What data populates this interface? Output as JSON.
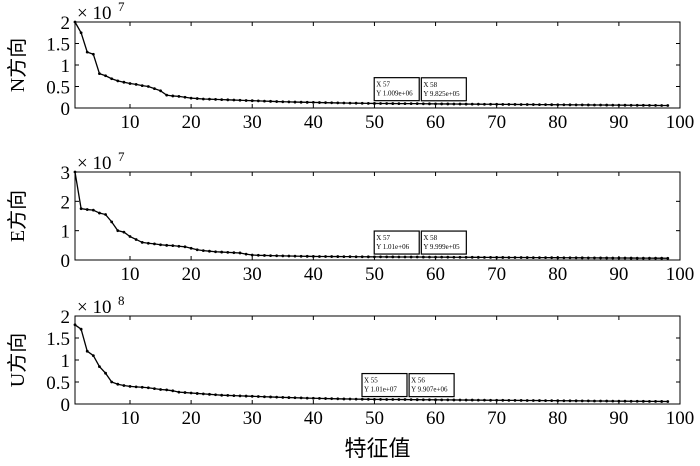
{
  "chart_data": [
    {
      "type": "line",
      "ylabel": "N方向",
      "scale_base": "× 10",
      "scale_exponent": "7",
      "x": [
        1,
        2,
        3,
        4,
        5,
        6,
        7,
        8,
        9,
        10,
        11,
        12,
        13,
        14,
        15,
        16,
        17,
        18,
        19,
        20,
        21,
        22,
        23,
        24,
        25,
        26,
        27,
        28,
        29,
        30,
        31,
        32,
        33,
        34,
        35,
        36,
        37,
        38,
        39,
        40,
        41,
        42,
        43,
        44,
        45,
        46,
        47,
        48,
        49,
        50,
        51,
        52,
        53,
        54,
        55,
        56,
        57,
        58,
        59,
        60,
        61,
        62,
        63,
        64,
        65,
        66,
        67,
        68,
        69,
        70,
        71,
        72,
        73,
        74,
        75,
        76,
        77,
        78,
        79,
        80,
        81,
        82,
        83,
        84,
        85,
        86,
        87,
        88,
        89,
        90,
        91,
        92,
        93,
        94,
        95,
        96,
        97,
        98
      ],
      "xlim": [
        1,
        100
      ],
      "xticks": [
        10,
        20,
        30,
        40,
        50,
        60,
        70,
        80,
        90,
        100
      ],
      "ylim": [
        0,
        2
      ],
      "yticks": [
        0,
        0.5,
        1,
        1.5,
        2
      ],
      "series": [
        {
          "color": "#000000",
          "values": [
            2.0,
            1.75,
            1.3,
            1.25,
            0.8,
            0.75,
            0.68,
            0.63,
            0.6,
            0.57,
            0.55,
            0.52,
            0.5,
            0.45,
            0.4,
            0.3,
            0.28,
            0.27,
            0.25,
            0.23,
            0.22,
            0.21,
            0.205,
            0.2,
            0.195,
            0.19,
            0.185,
            0.18,
            0.175,
            0.17,
            0.165,
            0.16,
            0.155,
            0.15,
            0.146,
            0.142,
            0.138,
            0.135,
            0.132,
            0.13,
            0.127,
            0.124,
            0.121,
            0.118,
            0.116,
            0.114,
            0.112,
            0.11,
            0.108,
            0.106,
            0.105,
            0.104,
            0.103,
            0.102,
            0.1015,
            0.101,
            0.1009,
            0.09825,
            0.097,
            0.096,
            0.095,
            0.094,
            0.093,
            0.092,
            0.091,
            0.09,
            0.089,
            0.088,
            0.087,
            0.086,
            0.085,
            0.084,
            0.083,
            0.082,
            0.081,
            0.08,
            0.079,
            0.078,
            0.077,
            0.076,
            0.075,
            0.074,
            0.073,
            0.072,
            0.071,
            0.07,
            0.069,
            0.068,
            0.067,
            0.066,
            0.065,
            0.064,
            0.063,
            0.062,
            0.061,
            0.06,
            0.059,
            0.058
          ]
        }
      ],
      "annotations": [
        {
          "x": 57,
          "x_label": "X 57",
          "y_label": "Y 1.009e+06"
        },
        {
          "x": 58,
          "x_label": "X 58",
          "y_label": "Y 9.825e+05"
        }
      ]
    },
    {
      "type": "line",
      "ylabel": "E方向",
      "scale_base": "× 10",
      "scale_exponent": "7",
      "x": [
        1,
        2,
        3,
        4,
        5,
        6,
        7,
        8,
        9,
        10,
        11,
        12,
        13,
        14,
        15,
        16,
        17,
        18,
        19,
        20,
        21,
        22,
        23,
        24,
        25,
        26,
        27,
        28,
        29,
        30,
        31,
        32,
        33,
        34,
        35,
        36,
        37,
        38,
        39,
        40,
        41,
        42,
        43,
        44,
        45,
        46,
        47,
        48,
        49,
        50,
        51,
        52,
        53,
        54,
        55,
        56,
        57,
        58,
        59,
        60,
        61,
        62,
        63,
        64,
        65,
        66,
        67,
        68,
        69,
        70,
        71,
        72,
        73,
        74,
        75,
        76,
        77,
        78,
        79,
        80,
        81,
        82,
        83,
        84,
        85,
        86,
        87,
        88,
        89,
        90,
        91,
        92,
        93,
        94,
        95,
        96,
        97,
        98
      ],
      "xlim": [
        1,
        100
      ],
      "xticks": [
        10,
        20,
        30,
        40,
        50,
        60,
        70,
        80,
        90,
        100
      ],
      "ylim": [
        0,
        3
      ],
      "yticks": [
        0,
        1,
        2,
        3
      ],
      "series": [
        {
          "color": "#000000",
          "values": [
            3.0,
            1.75,
            1.72,
            1.7,
            1.6,
            1.55,
            1.3,
            1.0,
            0.95,
            0.8,
            0.7,
            0.6,
            0.57,
            0.55,
            0.52,
            0.5,
            0.49,
            0.47,
            0.45,
            0.4,
            0.35,
            0.32,
            0.3,
            0.28,
            0.27,
            0.26,
            0.25,
            0.24,
            0.2,
            0.17,
            0.16,
            0.155,
            0.15,
            0.145,
            0.14,
            0.136,
            0.132,
            0.128,
            0.125,
            0.122,
            0.12,
            0.119,
            0.118,
            0.117,
            0.116,
            0.114,
            0.112,
            0.11,
            0.108,
            0.107,
            0.106,
            0.105,
            0.104,
            0.103,
            0.102,
            0.1015,
            0.101,
            0.09999,
            0.099,
            0.098,
            0.097,
            0.096,
            0.095,
            0.094,
            0.093,
            0.092,
            0.091,
            0.09,
            0.089,
            0.088,
            0.087,
            0.086,
            0.085,
            0.084,
            0.083,
            0.082,
            0.081,
            0.08,
            0.079,
            0.078,
            0.077,
            0.076,
            0.075,
            0.074,
            0.073,
            0.072,
            0.071,
            0.07,
            0.069,
            0.068,
            0.067,
            0.066,
            0.065,
            0.064,
            0.063,
            0.062,
            0.061,
            0.06
          ]
        }
      ],
      "annotations": [
        {
          "x": 57,
          "x_label": "X 57",
          "y_label": "Y 1.01e+06"
        },
        {
          "x": 58,
          "x_label": "X 58",
          "y_label": "Y 9.999e+05"
        }
      ]
    },
    {
      "type": "line",
      "ylabel": "U方向",
      "xlabel": "特征值",
      "scale_base": "× 10",
      "scale_exponent": "8",
      "x": [
        1,
        2,
        3,
        4,
        5,
        6,
        7,
        8,
        9,
        10,
        11,
        12,
        13,
        14,
        15,
        16,
        17,
        18,
        19,
        20,
        21,
        22,
        23,
        24,
        25,
        26,
        27,
        28,
        29,
        30,
        31,
        32,
        33,
        34,
        35,
        36,
        37,
        38,
        39,
        40,
        41,
        42,
        43,
        44,
        45,
        46,
        47,
        48,
        49,
        50,
        51,
        52,
        53,
        54,
        55,
        56,
        57,
        58,
        59,
        60,
        61,
        62,
        63,
        64,
        65,
        66,
        67,
        68,
        69,
        70,
        71,
        72,
        73,
        74,
        75,
        76,
        77,
        78,
        79,
        80,
        81,
        82,
        83,
        84,
        85,
        86,
        87,
        88,
        89,
        90,
        91,
        92,
        93,
        94,
        95,
        96,
        97,
        98
      ],
      "xlim": [
        1,
        100
      ],
      "xticks": [
        10,
        20,
        30,
        40,
        50,
        60,
        70,
        80,
        90,
        100
      ],
      "ylim": [
        0,
        2
      ],
      "yticks": [
        0,
        0.5,
        1,
        1.5,
        2
      ],
      "series": [
        {
          "color": "#000000",
          "values": [
            1.8,
            1.7,
            1.2,
            1.1,
            0.85,
            0.7,
            0.5,
            0.45,
            0.42,
            0.4,
            0.39,
            0.38,
            0.37,
            0.35,
            0.33,
            0.32,
            0.3,
            0.27,
            0.26,
            0.25,
            0.24,
            0.23,
            0.22,
            0.21,
            0.2,
            0.195,
            0.19,
            0.185,
            0.18,
            0.175,
            0.17,
            0.165,
            0.16,
            0.155,
            0.15,
            0.146,
            0.142,
            0.138,
            0.134,
            0.13,
            0.127,
            0.124,
            0.121,
            0.118,
            0.115,
            0.113,
            0.111,
            0.109,
            0.107,
            0.105,
            0.104,
            0.103,
            0.102,
            0.1015,
            0.101,
            0.09907,
            0.098,
            0.097,
            0.096,
            0.095,
            0.094,
            0.093,
            0.092,
            0.091,
            0.09,
            0.089,
            0.088,
            0.087,
            0.086,
            0.085,
            0.084,
            0.083,
            0.082,
            0.081,
            0.08,
            0.079,
            0.078,
            0.077,
            0.076,
            0.075,
            0.074,
            0.073,
            0.072,
            0.071,
            0.07,
            0.069,
            0.068,
            0.067,
            0.066,
            0.065,
            0.064,
            0.063,
            0.062,
            0.061,
            0.06,
            0.059,
            0.058,
            0.057
          ]
        }
      ],
      "annotations": [
        {
          "x": 55,
          "x_label": "X 55",
          "y_label": "Y 1.01e+07"
        },
        {
          "x": 56,
          "x_label": "X 56",
          "y_label": "Y 9.907e+06"
        }
      ]
    }
  ]
}
